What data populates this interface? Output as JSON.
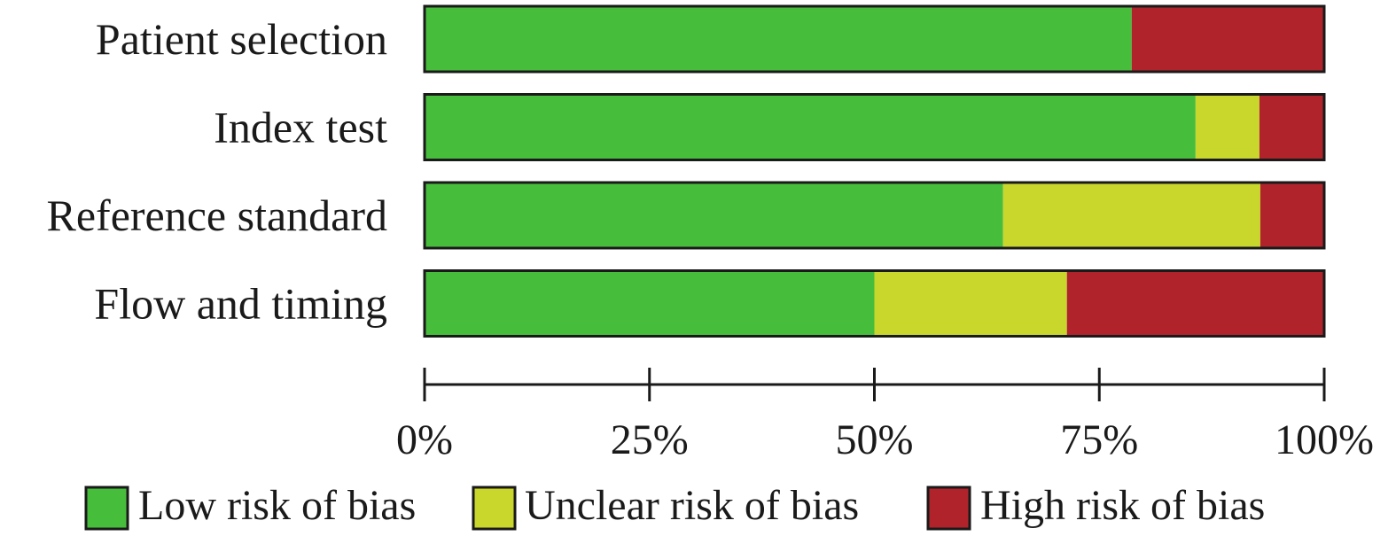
{
  "chart_data": {
    "type": "bar",
    "orientation": "horizontal",
    "stacked": true,
    "categories": [
      "Patient selection",
      "Index test",
      "Reference standard",
      "Flow and timing"
    ],
    "series": [
      {
        "name": "Low risk of bias",
        "color": "#47bd3c",
        "values": [
          78.6,
          85.7,
          64.3,
          50.0
        ]
      },
      {
        "name": "Unclear risk of bias",
        "color": "#c9d62b",
        "values": [
          0.0,
          7.1,
          28.6,
          21.4
        ]
      },
      {
        "name": "High risk of bias",
        "color": "#b0232b",
        "values": [
          21.4,
          7.2,
          7.1,
          28.6
        ]
      }
    ],
    "xlim": [
      0,
      100
    ],
    "x_ticks": [
      "0%",
      "25%",
      "50%",
      "75%",
      "100%"
    ],
    "x_tick_values": [
      0,
      25,
      50,
      75,
      100
    ],
    "grid": false,
    "legend_position": "bottom"
  }
}
